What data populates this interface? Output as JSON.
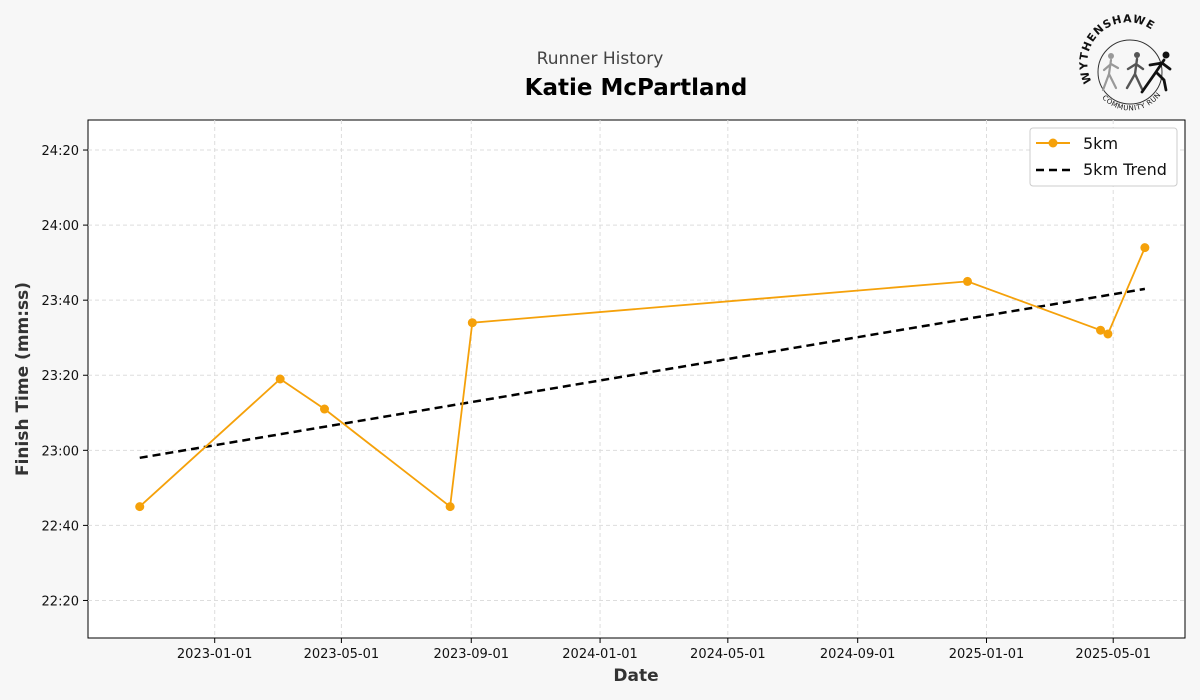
{
  "header": {
    "subtitle": "Runner History",
    "title": "Katie McPartland"
  },
  "logo": {
    "text_top": "WYTHENSHAWE",
    "text_bottom": "COMMUNITY RUN"
  },
  "colors": {
    "series": "#f5a10a",
    "trend": "#000000",
    "background": "#f7f7f7"
  },
  "chart_data": {
    "type": "line",
    "xlabel": "Date",
    "ylabel": "Finish Time (mm:ss)",
    "x_ticks": [
      "2023-01-01",
      "2023-05-01",
      "2023-09-01",
      "2024-01-01",
      "2024-05-01",
      "2024-09-01",
      "2025-01-01",
      "2025-05-01"
    ],
    "y_ticks": [
      "22:20",
      "22:40",
      "23:00",
      "23:20",
      "23:40",
      "24:00",
      "24:20"
    ],
    "xlim": [
      "2022-09-03",
      "2025-07-08"
    ],
    "ylim": [
      "22:10",
      "24:28"
    ],
    "grid": true,
    "legend_position": "top-right",
    "series": [
      {
        "name": "5km",
        "style": "solid-with-markers",
        "points": [
          {
            "x": "2022-10-22",
            "y": "22:45"
          },
          {
            "x": "2023-03-04",
            "y": "23:19"
          },
          {
            "x": "2023-04-15",
            "y": "23:11"
          },
          {
            "x": "2023-08-12",
            "y": "22:45"
          },
          {
            "x": "2023-09-02",
            "y": "23:34"
          },
          {
            "x": "2024-12-14",
            "y": "23:45"
          },
          {
            "x": "2025-04-19",
            "y": "23:32"
          },
          {
            "x": "2025-04-26",
            "y": "23:31"
          },
          {
            "x": "2025-05-31",
            "y": "23:54"
          }
        ]
      },
      {
        "name": "5km Trend",
        "style": "dashed",
        "points": [
          {
            "x": "2022-10-22",
            "y": "22:58"
          },
          {
            "x": "2025-05-31",
            "y": "23:43"
          }
        ]
      }
    ]
  }
}
